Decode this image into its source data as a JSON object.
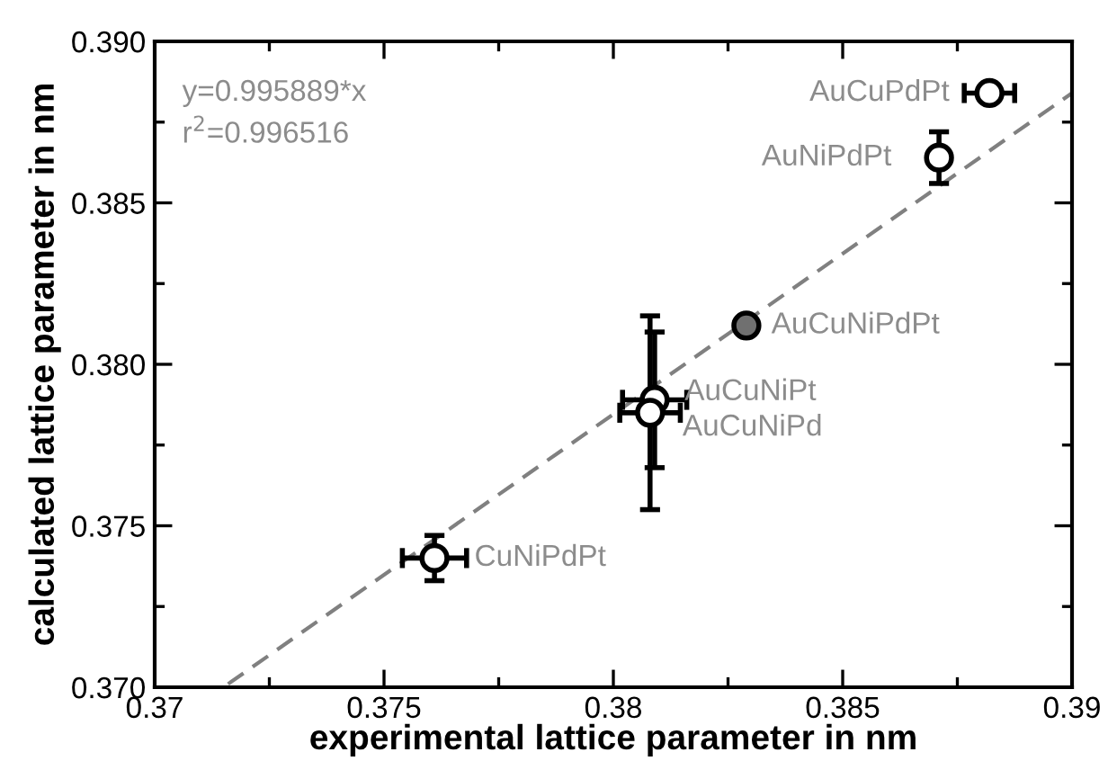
{
  "chart_data": {
    "type": "scatter",
    "xlabel": "experimental lattice parameter in nm",
    "ylabel": "calculated lattice parameter in nm",
    "xlim": [
      0.37,
      0.39
    ],
    "ylim": [
      0.37,
      0.39
    ],
    "xticks": [
      {
        "value": 0.37,
        "label": "0.37"
      },
      {
        "value": 0.375,
        "label": "0.375"
      },
      {
        "value": 0.38,
        "label": "0.38"
      },
      {
        "value": 0.385,
        "label": "0.385"
      },
      {
        "value": 0.39,
        "label": "0.39"
      }
    ],
    "yticks": [
      {
        "value": 0.37,
        "label": "0.370"
      },
      {
        "value": 0.375,
        "label": "0.375"
      },
      {
        "value": 0.38,
        "label": "0.380"
      },
      {
        "value": 0.385,
        "label": "0.385"
      },
      {
        "value": 0.39,
        "label": "0.390"
      }
    ],
    "grid": false,
    "series": [
      {
        "marker": "circle",
        "x": [
          0.3882,
          0.3871,
          0.3829,
          0.3809,
          0.3808,
          0.3761
        ],
        "values": [
          0.3884,
          0.3864,
          0.3812,
          0.3789,
          0.3785,
          0.374
        ],
        "colors": [
          "#ffffff",
          "#ffffff",
          "#707070",
          "#ffffff",
          "#ffffff",
          "#ffffff"
        ],
        "errors": [
          null,
          0.0008,
          null,
          0.0021,
          0.003,
          0.0007
        ],
        "xerrors": [
          0.00055,
          null,
          null,
          0.0007,
          0.00066,
          0.0007
        ]
      },
      {
        "type": "line",
        "x": [
          0.3716,
          0.39
        ],
        "values": [
          0.3701,
          0.3884
        ],
        "color": "#808080",
        "line_style": "dashed"
      }
    ],
    "annotations": [
      "y=0.995889*x",
      "r$^{2}$=0.996516",
      {
        "text": "AuCuPdPt",
        "x": 0.3882,
        "y": 0.3884
      },
      {
        "text": "AuNiPdPt",
        "x": 0.3871,
        "y": 0.3864
      },
      {
        "text": "AuCuNiPdPt",
        "x": 0.3829,
        "y": 0.3812
      },
      {
        "text": "AuCuNiPt",
        "x": 0.3809,
        "y": 0.3789
      },
      {
        "text": "AuCuNiPd",
        "x": 0.3808,
        "y": 0.3785
      },
      {
        "text": "CuNiPdPt",
        "x": 0.3761,
        "y": 0.374
      }
    ]
  }
}
